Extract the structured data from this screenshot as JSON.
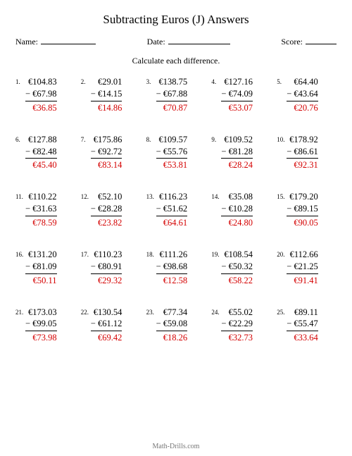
{
  "title": "Subtracting Euros (J) Answers",
  "labels": {
    "name": "Name:",
    "date": "Date:",
    "score": "Score:"
  },
  "instruction": "Calculate each difference.",
  "currency": "€",
  "minus": "−",
  "footer": "Math-Drills.com",
  "colors": {
    "answer": "#d40000",
    "text": "#000000",
    "footer": "#777777",
    "background": "#ffffff"
  },
  "problems": [
    {
      "n": "1.",
      "a": "104.83",
      "b": "67.98",
      "r": "36.85"
    },
    {
      "n": "2.",
      "a": "29.01",
      "b": "14.15",
      "r": "14.86"
    },
    {
      "n": "3.",
      "a": "138.75",
      "b": "67.88",
      "r": "70.87"
    },
    {
      "n": "4.",
      "a": "127.16",
      "b": "74.09",
      "r": "53.07"
    },
    {
      "n": "5.",
      "a": "64.40",
      "b": "43.64",
      "r": "20.76"
    },
    {
      "n": "6.",
      "a": "127.88",
      "b": "82.48",
      "r": "45.40"
    },
    {
      "n": "7.",
      "a": "175.86",
      "b": "92.72",
      "r": "83.14"
    },
    {
      "n": "8.",
      "a": "109.57",
      "b": "55.76",
      "r": "53.81"
    },
    {
      "n": "9.",
      "a": "109.52",
      "b": "81.28",
      "r": "28.24"
    },
    {
      "n": "10.",
      "a": "178.92",
      "b": "86.61",
      "r": "92.31"
    },
    {
      "n": "11.",
      "a": "110.22",
      "b": "31.63",
      "r": "78.59"
    },
    {
      "n": "12.",
      "a": "52.10",
      "b": "28.28",
      "r": "23.82"
    },
    {
      "n": "13.",
      "a": "116.23",
      "b": "51.62",
      "r": "64.61"
    },
    {
      "n": "14.",
      "a": "35.08",
      "b": "10.28",
      "r": "24.80"
    },
    {
      "n": "15.",
      "a": "179.20",
      "b": "89.15",
      "r": "90.05"
    },
    {
      "n": "16.",
      "a": "131.20",
      "b": "81.09",
      "r": "50.11"
    },
    {
      "n": "17.",
      "a": "110.23",
      "b": "80.91",
      "r": "29.32"
    },
    {
      "n": "18.",
      "a": "111.26",
      "b": "98.68",
      "r": "12.58"
    },
    {
      "n": "19.",
      "a": "108.54",
      "b": "50.32",
      "r": "58.22"
    },
    {
      "n": "20.",
      "a": "112.66",
      "b": "21.25",
      "r": "91.41"
    },
    {
      "n": "21.",
      "a": "173.03",
      "b": "99.05",
      "r": "73.98"
    },
    {
      "n": "22.",
      "a": "130.54",
      "b": "61.12",
      "r": "69.42"
    },
    {
      "n": "23.",
      "a": "77.34",
      "b": "59.08",
      "r": "18.26"
    },
    {
      "n": "24.",
      "a": "55.02",
      "b": "22.29",
      "r": "32.73"
    },
    {
      "n": "25.",
      "a": "89.11",
      "b": "55.47",
      "r": "33.64"
    }
  ]
}
